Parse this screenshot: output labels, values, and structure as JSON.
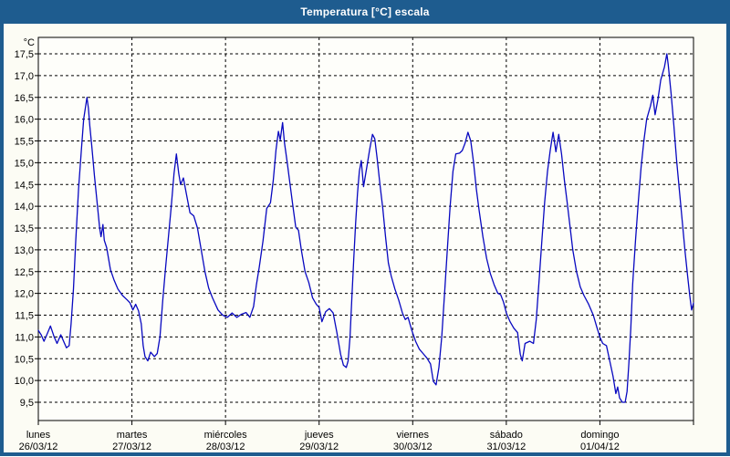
{
  "window": {
    "title": "Temperatura [°C] escala"
  },
  "colors": {
    "frame": "#1E5C8F",
    "title_text": "#FFFFFF",
    "content_bg": "#FCFCF4",
    "plot_bg": "#FEFEFA",
    "grid": "#000000",
    "axis": "#000000",
    "label_text": "#000000",
    "line": "#0808C0"
  },
  "chart_data": {
    "type": "line",
    "title": "Temperatura [°C] escala",
    "grid": "dashed",
    "legend": "none",
    "y_axis": {
      "unit": "°C",
      "min": 9.5,
      "max": 17.5,
      "step": 0.5,
      "ticks": [
        "17,5",
        "17,0",
        "16,5",
        "16,0",
        "15,5",
        "15,0",
        "14,5",
        "14,0",
        "13,5",
        "13,0",
        "12,5",
        "12,0",
        "11,5",
        "11,0",
        "10,5",
        "10,0",
        "9,5"
      ]
    },
    "x_axis": {
      "days": [
        {
          "name": "lunes",
          "date": "26/03/12"
        },
        {
          "name": "martes",
          "date": "27/03/12"
        },
        {
          "name": "miércoles",
          "date": "28/03/12"
        },
        {
          "name": "jueves",
          "date": "29/03/12"
        },
        {
          "name": "viernes",
          "date": "30/03/12"
        },
        {
          "name": "sábado",
          "date": "31/03/12"
        },
        {
          "name": "domingo",
          "date": "01/04/12"
        }
      ]
    },
    "series": [
      {
        "name": "Temperatura",
        "color": "#0808C0",
        "points": [
          [
            0.0,
            11.15
          ],
          [
            0.03,
            11.05
          ],
          [
            0.06,
            10.9
          ],
          [
            0.1,
            11.1
          ],
          [
            0.13,
            11.25
          ],
          [
            0.17,
            11.0
          ],
          [
            0.2,
            10.85
          ],
          [
            0.24,
            11.05
          ],
          [
            0.27,
            10.9
          ],
          [
            0.3,
            10.75
          ],
          [
            0.33,
            10.8
          ],
          [
            0.35,
            11.3
          ],
          [
            0.375,
            12.1
          ],
          [
            0.4,
            13.2
          ],
          [
            0.43,
            14.4
          ],
          [
            0.46,
            15.3
          ],
          [
            0.485,
            16.0
          ],
          [
            0.52,
            16.5
          ],
          [
            0.535,
            16.25
          ],
          [
            0.55,
            15.85
          ],
          [
            0.57,
            15.4
          ],
          [
            0.6,
            14.7
          ],
          [
            0.63,
            14.05
          ],
          [
            0.655,
            13.5
          ],
          [
            0.67,
            13.3
          ],
          [
            0.69,
            13.58
          ],
          [
            0.705,
            13.22
          ],
          [
            0.73,
            13.05
          ],
          [
            0.77,
            12.55
          ],
          [
            0.81,
            12.3
          ],
          [
            0.85,
            12.1
          ],
          [
            0.9,
            11.95
          ],
          [
            0.95,
            11.85
          ],
          [
            0.98,
            11.78
          ],
          [
            1.01,
            11.62
          ],
          [
            1.04,
            11.75
          ],
          [
            1.07,
            11.6
          ],
          [
            1.1,
            11.3
          ],
          [
            1.12,
            10.8
          ],
          [
            1.14,
            10.55
          ],
          [
            1.17,
            10.45
          ],
          [
            1.2,
            10.65
          ],
          [
            1.24,
            10.55
          ],
          [
            1.27,
            10.62
          ],
          [
            1.3,
            11.0
          ],
          [
            1.33,
            11.85
          ],
          [
            1.36,
            12.6
          ],
          [
            1.39,
            13.3
          ],
          [
            1.42,
            14.0
          ],
          [
            1.45,
            14.75
          ],
          [
            1.475,
            15.2
          ],
          [
            1.5,
            14.75
          ],
          [
            1.52,
            14.5
          ],
          [
            1.55,
            14.65
          ],
          [
            1.58,
            14.3
          ],
          [
            1.62,
            13.85
          ],
          [
            1.66,
            13.78
          ],
          [
            1.7,
            13.5
          ],
          [
            1.74,
            13.0
          ],
          [
            1.78,
            12.5
          ],
          [
            1.82,
            12.12
          ],
          [
            1.86,
            11.9
          ],
          [
            1.92,
            11.62
          ],
          [
            1.97,
            11.5
          ],
          [
            2.02,
            11.45
          ],
          [
            2.07,
            11.55
          ],
          [
            2.12,
            11.45
          ],
          [
            2.17,
            11.52
          ],
          [
            2.22,
            11.56
          ],
          [
            2.26,
            11.45
          ],
          [
            2.3,
            11.7
          ],
          [
            2.33,
            12.2
          ],
          [
            2.36,
            12.6
          ],
          [
            2.4,
            13.2
          ],
          [
            2.44,
            13.95
          ],
          [
            2.48,
            14.08
          ],
          [
            2.51,
            14.6
          ],
          [
            2.54,
            15.3
          ],
          [
            2.565,
            15.72
          ],
          [
            2.585,
            15.52
          ],
          [
            2.61,
            15.92
          ],
          [
            2.63,
            15.45
          ],
          [
            2.66,
            15.0
          ],
          [
            2.69,
            14.5
          ],
          [
            2.72,
            14.0
          ],
          [
            2.75,
            13.52
          ],
          [
            2.78,
            13.45
          ],
          [
            2.81,
            13.0
          ],
          [
            2.85,
            12.5
          ],
          [
            2.89,
            12.25
          ],
          [
            2.93,
            11.9
          ],
          [
            2.97,
            11.75
          ],
          [
            3.0,
            11.68
          ],
          [
            3.03,
            11.35
          ],
          [
            3.07,
            11.58
          ],
          [
            3.11,
            11.65
          ],
          [
            3.15,
            11.55
          ],
          [
            3.19,
            11.1
          ],
          [
            3.23,
            10.6
          ],
          [
            3.26,
            10.35
          ],
          [
            3.29,
            10.3
          ],
          [
            3.31,
            10.45
          ],
          [
            3.33,
            11.0
          ],
          [
            3.35,
            11.9
          ],
          [
            3.37,
            12.8
          ],
          [
            3.39,
            13.6
          ],
          [
            3.41,
            14.3
          ],
          [
            3.43,
            14.8
          ],
          [
            3.45,
            15.05
          ],
          [
            3.475,
            14.45
          ],
          [
            3.51,
            14.9
          ],
          [
            3.54,
            15.3
          ],
          [
            3.57,
            15.65
          ],
          [
            3.595,
            15.55
          ],
          [
            3.62,
            15.1
          ],
          [
            3.65,
            14.5
          ],
          [
            3.68,
            13.95
          ],
          [
            3.71,
            13.3
          ],
          [
            3.74,
            12.7
          ],
          [
            3.77,
            12.4
          ],
          [
            3.81,
            12.1
          ],
          [
            3.85,
            11.85
          ],
          [
            3.89,
            11.55
          ],
          [
            3.92,
            11.4
          ],
          [
            3.95,
            11.45
          ],
          [
            3.99,
            11.15
          ],
          [
            4.03,
            10.9
          ],
          [
            4.07,
            10.72
          ],
          [
            4.11,
            10.62
          ],
          [
            4.15,
            10.52
          ],
          [
            4.19,
            10.38
          ],
          [
            4.22,
            9.98
          ],
          [
            4.25,
            9.9
          ],
          [
            4.28,
            10.3
          ],
          [
            4.31,
            11.0
          ],
          [
            4.34,
            12.0
          ],
          [
            4.37,
            13.0
          ],
          [
            4.4,
            14.0
          ],
          [
            4.43,
            14.8
          ],
          [
            4.46,
            15.2
          ],
          [
            4.5,
            15.22
          ],
          [
            4.53,
            15.28
          ],
          [
            4.56,
            15.45
          ],
          [
            4.59,
            15.7
          ],
          [
            4.62,
            15.5
          ],
          [
            4.65,
            15.0
          ],
          [
            4.68,
            14.4
          ],
          [
            4.71,
            13.9
          ],
          [
            4.75,
            13.3
          ],
          [
            4.79,
            12.8
          ],
          [
            4.83,
            12.45
          ],
          [
            4.87,
            12.2
          ],
          [
            4.91,
            12.0
          ],
          [
            4.94,
            11.97
          ],
          [
            4.97,
            11.8
          ],
          [
            5.0,
            11.55
          ],
          [
            5.04,
            11.35
          ],
          [
            5.08,
            11.2
          ],
          [
            5.12,
            11.1
          ],
          [
            5.15,
            10.6
          ],
          [
            5.17,
            10.45
          ],
          [
            5.2,
            10.85
          ],
          [
            5.25,
            10.9
          ],
          [
            5.29,
            10.85
          ],
          [
            5.32,
            11.4
          ],
          [
            5.35,
            12.3
          ],
          [
            5.38,
            13.2
          ],
          [
            5.41,
            14.1
          ],
          [
            5.44,
            14.8
          ],
          [
            5.47,
            15.3
          ],
          [
            5.5,
            15.7
          ],
          [
            5.53,
            15.25
          ],
          [
            5.56,
            15.65
          ],
          [
            5.59,
            15.2
          ],
          [
            5.62,
            14.6
          ],
          [
            5.65,
            14.1
          ],
          [
            5.68,
            13.55
          ],
          [
            5.71,
            13.0
          ],
          [
            5.75,
            12.5
          ],
          [
            5.79,
            12.15
          ],
          [
            5.83,
            11.95
          ],
          [
            5.88,
            11.75
          ],
          [
            5.93,
            11.5
          ],
          [
            5.97,
            11.2
          ],
          [
            6.0,
            11.0
          ],
          [
            6.03,
            10.85
          ],
          [
            6.07,
            10.8
          ],
          [
            6.1,
            10.5
          ],
          [
            6.14,
            10.1
          ],
          [
            6.17,
            9.7
          ],
          [
            6.19,
            9.85
          ],
          [
            6.21,
            9.6
          ],
          [
            6.24,
            9.5
          ],
          [
            6.27,
            9.5
          ],
          [
            6.29,
            9.75
          ],
          [
            6.31,
            10.4
          ],
          [
            6.33,
            11.2
          ],
          [
            6.35,
            12.2
          ],
          [
            6.38,
            13.2
          ],
          [
            6.41,
            14.1
          ],
          [
            6.44,
            14.9
          ],
          [
            6.47,
            15.5
          ],
          [
            6.5,
            16.0
          ],
          [
            6.54,
            16.3
          ],
          [
            6.565,
            16.55
          ],
          [
            6.59,
            16.1
          ],
          [
            6.62,
            16.45
          ],
          [
            6.65,
            16.9
          ],
          [
            6.69,
            17.2
          ],
          [
            6.715,
            17.5
          ],
          [
            6.73,
            17.25
          ],
          [
            6.76,
            16.6
          ],
          [
            6.79,
            15.85
          ],
          [
            6.82,
            15.05
          ],
          [
            6.85,
            14.35
          ],
          [
            6.88,
            13.65
          ],
          [
            6.91,
            12.95
          ],
          [
            6.94,
            12.35
          ],
          [
            6.96,
            11.95
          ],
          [
            6.98,
            11.62
          ],
          [
            7.0,
            11.78
          ]
        ]
      }
    ]
  }
}
